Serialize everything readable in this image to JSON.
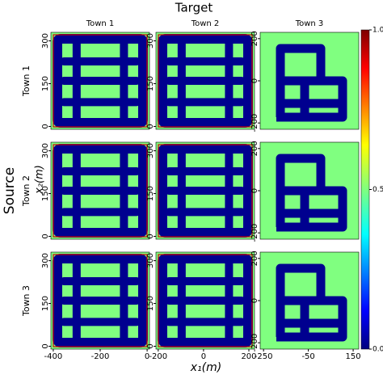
{
  "figure": {
    "title": "Target",
    "row_axis_title": "Source",
    "x_label": "x₁(m)",
    "y_label": "x₂(m)",
    "columns": [
      {
        "name": "Town 1",
        "xlim": [
          -410,
          10
        ],
        "xticks": [
          -400,
          -200,
          0
        ],
        "ylim": [
          -10,
          330
        ],
        "yticks": [
          0,
          150,
          300
        ]
      },
      {
        "name": "Town 2",
        "xlim": [
          -210,
          225
        ],
        "xticks": [
          -200,
          0,
          200
        ],
        "ylim": [
          -10,
          330
        ],
        "yticks": [
          0,
          150,
          300
        ]
      },
      {
        "name": "Town 3",
        "xlim": [
          -265,
          175
        ],
        "xticks": [
          -250,
          -50,
          150
        ],
        "ylim": [
          -230,
          230
        ],
        "yticks": [
          -200,
          0,
          200
        ]
      }
    ],
    "rows": [
      "Town 1",
      "Town 2",
      "Town 3"
    ],
    "colorbar": {
      "ylim": [
        0,
        1
      ],
      "yticks": [
        {
          "value": 0,
          "label": "0.0"
        },
        {
          "value": 0.5,
          "label": "0.5"
        },
        {
          "value": 1,
          "label": "1.0"
        }
      ]
    }
  }
}
